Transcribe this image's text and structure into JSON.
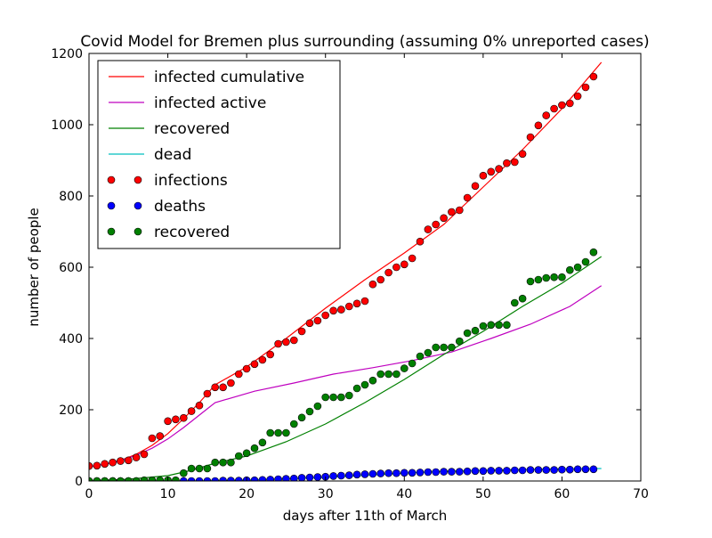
{
  "chart_data": {
    "type": "line",
    "title": "Covid Model for Bremen plus surrounding (assuming 0% unreported cases)",
    "xlabel": "days after 11th of March",
    "ylabel": "number of people",
    "xlim": [
      0,
      70
    ],
    "ylim": [
      0,
      1200
    ],
    "xticks": [
      "0",
      "10",
      "20",
      "30",
      "40",
      "50",
      "60",
      "70"
    ],
    "yticks": [
      "0",
      "200",
      "400",
      "600",
      "800",
      "1000",
      "1200"
    ],
    "grid": false,
    "legend_position": "top-left",
    "series": [
      {
        "name": "infected cumulative",
        "kind": "line",
        "color": "#ff0000",
        "x": [
          0,
          2,
          4,
          6,
          8,
          10,
          12,
          14,
          16,
          20,
          25,
          30,
          35,
          40,
          45,
          50,
          55,
          60,
          65
        ],
        "y": [
          40,
          47,
          58,
          75,
          100,
          133,
          175,
          220,
          270,
          320,
          400,
          485,
          565,
          640,
          720,
          825,
          930,
          1045,
          1175
        ]
      },
      {
        "name": "infected active",
        "kind": "line",
        "color": "#bf00bf",
        "x": [
          0,
          2,
          4,
          6,
          8,
          10,
          12,
          14,
          16,
          21,
          26,
          31,
          36,
          41,
          46,
          51,
          56,
          61,
          65
        ],
        "y": [
          40,
          47,
          57,
          72,
          92,
          118,
          150,
          185,
          220,
          252,
          275,
          300,
          318,
          338,
          362,
          400,
          440,
          490,
          548
        ]
      },
      {
        "name": "recovered",
        "kind": "line",
        "color": "#008000",
        "x": [
          0,
          5,
          10,
          13,
          16,
          20,
          25,
          30,
          35,
          40,
          45,
          50,
          55,
          60,
          65
        ],
        "y": [
          0,
          5,
          15,
          30,
          50,
          70,
          110,
          160,
          220,
          285,
          355,
          420,
          490,
          555,
          630
        ]
      },
      {
        "name": "dead",
        "kind": "line",
        "color": "#00bfbf",
        "x": [
          0,
          12,
          16,
          20,
          25,
          30,
          35,
          40,
          45,
          50,
          55,
          60,
          65
        ],
        "y": [
          0,
          0,
          1,
          3,
          6,
          10,
          16,
          22,
          27,
          30,
          32,
          34,
          35
        ]
      },
      {
        "name": "infections",
        "kind": "scatter",
        "color": "#ff0000",
        "x": [
          0,
          1,
          2,
          3,
          4,
          5,
          6,
          7,
          8,
          9,
          10,
          11,
          12,
          13,
          14,
          15,
          16,
          17,
          18,
          19,
          20,
          21,
          22,
          23,
          24,
          25,
          26,
          27,
          28,
          29,
          30,
          31,
          32,
          33,
          34,
          35,
          36,
          37,
          38,
          39,
          40,
          41,
          42,
          43,
          44,
          45,
          46,
          47,
          48,
          49,
          50,
          51,
          52,
          53,
          54,
          55,
          56,
          57,
          58,
          59,
          60,
          61,
          62,
          63,
          64
        ],
        "y": [
          42,
          43,
          48,
          52,
          56,
          58,
          66,
          75,
          120,
          126,
          168,
          173,
          177,
          196,
          212,
          245,
          263,
          263,
          275,
          300,
          315,
          328,
          340,
          355,
          385,
          390,
          395,
          420,
          443,
          450,
          465,
          478,
          481,
          490,
          498,
          505,
          552,
          565,
          585,
          600,
          608,
          625,
          672,
          706,
          720,
          738,
          755,
          760,
          795,
          828,
          857,
          868,
          876,
          892,
          895,
          918,
          965,
          998,
          1026,
          1045,
          1055,
          1060,
          1080,
          1105,
          1135
        ]
      },
      {
        "name": "deaths",
        "kind": "scatter",
        "color": "#0000ff",
        "x": [
          0,
          1,
          2,
          3,
          4,
          5,
          6,
          7,
          8,
          9,
          10,
          11,
          12,
          13,
          14,
          15,
          16,
          17,
          18,
          19,
          20,
          21,
          22,
          23,
          24,
          25,
          26,
          27,
          28,
          29,
          30,
          31,
          32,
          33,
          34,
          35,
          36,
          37,
          38,
          39,
          40,
          41,
          42,
          43,
          44,
          45,
          46,
          47,
          48,
          49,
          50,
          51,
          52,
          53,
          54,
          55,
          56,
          57,
          58,
          59,
          60,
          61,
          62,
          63,
          64
        ],
        "y": [
          0,
          0,
          0,
          0,
          0,
          0,
          0,
          0,
          0,
          0,
          0,
          0,
          0,
          0,
          0,
          0,
          0,
          1,
          1,
          1,
          2,
          2,
          3,
          4,
          5,
          6,
          7,
          9,
          10,
          11,
          12,
          14,
          15,
          16,
          18,
          19,
          20,
          21,
          22,
          22,
          23,
          23,
          24,
          25,
          25,
          26,
          26,
          26,
          27,
          28,
          28,
          29,
          29,
          29,
          30,
          30,
          31,
          31,
          31,
          31,
          32,
          32,
          33,
          33,
          33
        ]
      },
      {
        "name": "recovered",
        "kind": "scatter",
        "color": "#008000",
        "x": [
          0,
          1,
          2,
          3,
          4,
          5,
          6,
          7,
          8,
          9,
          10,
          11,
          12,
          13,
          14,
          15,
          16,
          17,
          18,
          19,
          20,
          21,
          22,
          23,
          24,
          25,
          26,
          27,
          28,
          29,
          30,
          31,
          32,
          33,
          34,
          35,
          36,
          37,
          38,
          39,
          40,
          41,
          42,
          43,
          44,
          45,
          46,
          47,
          48,
          49,
          50,
          51,
          52,
          53,
          54,
          55,
          56,
          57,
          58,
          59,
          60,
          61,
          62,
          63,
          64
        ],
        "y": [
          0,
          0,
          0,
          0,
          0,
          0,
          0,
          2,
          2,
          2,
          2,
          2,
          22,
          35,
          35,
          35,
          52,
          52,
          52,
          70,
          78,
          92,
          108,
          135,
          135,
          135,
          160,
          178,
          195,
          210,
          235,
          235,
          235,
          240,
          260,
          270,
          282,
          300,
          300,
          300,
          316,
          330,
          350,
          360,
          375,
          375,
          375,
          392,
          415,
          422,
          435,
          438,
          438,
          438,
          500,
          512,
          560,
          565,
          570,
          572,
          572,
          592,
          600,
          615,
          642
        ]
      }
    ]
  }
}
